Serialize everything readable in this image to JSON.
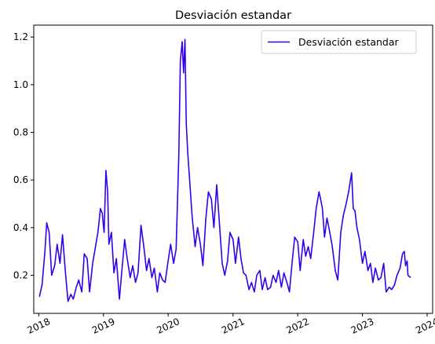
{
  "chart_data": {
    "type": "line",
    "title": "Desviación estandar",
    "xlabel": "",
    "ylabel": "",
    "x_ticks": [
      "2018",
      "2019",
      "2020",
      "2021",
      "2022",
      "2023",
      "2024"
    ],
    "y_ticks": [
      "0.2",
      "0.4",
      "0.6",
      "0.8",
      "1.0",
      "1.2"
    ],
    "xlim": [
      "2017-12-04",
      "2024-02-01"
    ],
    "ylim": [
      0.04,
      1.25
    ],
    "grid": false,
    "legend_position": "top-right",
    "series": [
      {
        "name": "Desviación estandar",
        "color": "#3300ee",
        "points": [
          [
            "2018-01-05",
            0.11
          ],
          [
            "2018-01-20",
            0.16
          ],
          [
            "2018-02-05",
            0.3
          ],
          [
            "2018-02-15",
            0.42
          ],
          [
            "2018-03-01",
            0.38
          ],
          [
            "2018-03-15",
            0.2
          ],
          [
            "2018-04-01",
            0.24
          ],
          [
            "2018-04-15",
            0.33
          ],
          [
            "2018-05-01",
            0.25
          ],
          [
            "2018-05-15",
            0.37
          ],
          [
            "2018-06-01",
            0.21
          ],
          [
            "2018-06-15",
            0.09
          ],
          [
            "2018-07-01",
            0.12
          ],
          [
            "2018-07-15",
            0.1
          ],
          [
            "2018-08-01",
            0.15
          ],
          [
            "2018-08-15",
            0.18
          ],
          [
            "2018-09-01",
            0.13
          ],
          [
            "2018-09-15",
            0.29
          ],
          [
            "2018-10-01",
            0.27
          ],
          [
            "2018-10-15",
            0.13
          ],
          [
            "2018-11-01",
            0.25
          ],
          [
            "2018-11-15",
            0.31
          ],
          [
            "2018-12-01",
            0.38
          ],
          [
            "2018-12-15",
            0.48
          ],
          [
            "2018-12-25",
            0.46
          ],
          [
            "2019-01-05",
            0.38
          ],
          [
            "2019-01-15",
            0.64
          ],
          [
            "2019-01-25",
            0.55
          ],
          [
            "2019-02-01",
            0.33
          ],
          [
            "2019-02-15",
            0.38
          ],
          [
            "2019-03-01",
            0.21
          ],
          [
            "2019-03-15",
            0.27
          ],
          [
            "2019-04-01",
            0.1
          ],
          [
            "2019-04-15",
            0.22
          ],
          [
            "2019-05-01",
            0.35
          ],
          [
            "2019-05-15",
            0.27
          ],
          [
            "2019-06-01",
            0.19
          ],
          [
            "2019-06-15",
            0.24
          ],
          [
            "2019-07-01",
            0.17
          ],
          [
            "2019-07-15",
            0.21
          ],
          [
            "2019-08-01",
            0.41
          ],
          [
            "2019-08-15",
            0.33
          ],
          [
            "2019-09-01",
            0.22
          ],
          [
            "2019-09-15",
            0.27
          ],
          [
            "2019-10-01",
            0.19
          ],
          [
            "2019-10-15",
            0.23
          ],
          [
            "2019-11-01",
            0.13
          ],
          [
            "2019-11-15",
            0.21
          ],
          [
            "2019-12-01",
            0.18
          ],
          [
            "2019-12-15",
            0.17
          ],
          [
            "2020-01-01",
            0.26
          ],
          [
            "2020-01-15",
            0.33
          ],
          [
            "2020-02-01",
            0.25
          ],
          [
            "2020-02-15",
            0.31
          ],
          [
            "2020-03-01",
            0.7
          ],
          [
            "2020-03-10",
            1.1
          ],
          [
            "2020-03-20",
            1.18
          ],
          [
            "2020-03-28",
            1.05
          ],
          [
            "2020-04-05",
            1.19
          ],
          [
            "2020-04-12",
            0.84
          ],
          [
            "2020-04-20",
            0.72
          ],
          [
            "2020-05-01",
            0.6
          ],
          [
            "2020-05-15",
            0.45
          ],
          [
            "2020-06-01",
            0.32
          ],
          [
            "2020-06-15",
            0.4
          ],
          [
            "2020-07-01",
            0.33
          ],
          [
            "2020-07-15",
            0.24
          ],
          [
            "2020-08-01",
            0.44
          ],
          [
            "2020-08-15",
            0.55
          ],
          [
            "2020-09-01",
            0.52
          ],
          [
            "2020-09-15",
            0.4
          ],
          [
            "2020-10-01",
            0.58
          ],
          [
            "2020-10-15",
            0.43
          ],
          [
            "2020-11-01",
            0.25
          ],
          [
            "2020-11-15",
            0.2
          ],
          [
            "2020-12-01",
            0.26
          ],
          [
            "2020-12-15",
            0.38
          ],
          [
            "2021-01-01",
            0.35
          ],
          [
            "2021-01-15",
            0.25
          ],
          [
            "2021-02-01",
            0.36
          ],
          [
            "2021-02-15",
            0.27
          ],
          [
            "2021-03-01",
            0.21
          ],
          [
            "2021-03-15",
            0.2
          ],
          [
            "2021-04-01",
            0.14
          ],
          [
            "2021-04-15",
            0.17
          ],
          [
            "2021-05-01",
            0.13
          ],
          [
            "2021-05-15",
            0.2
          ],
          [
            "2021-06-01",
            0.22
          ],
          [
            "2021-06-15",
            0.14
          ],
          [
            "2021-07-01",
            0.19
          ],
          [
            "2021-07-15",
            0.14
          ],
          [
            "2021-08-01",
            0.15
          ],
          [
            "2021-08-15",
            0.2
          ],
          [
            "2021-09-01",
            0.17
          ],
          [
            "2021-09-15",
            0.22
          ],
          [
            "2021-10-01",
            0.15
          ],
          [
            "2021-10-15",
            0.21
          ],
          [
            "2021-11-01",
            0.17
          ],
          [
            "2021-11-15",
            0.13
          ],
          [
            "2021-12-01",
            0.26
          ],
          [
            "2021-12-15",
            0.36
          ],
          [
            "2022-01-01",
            0.34
          ],
          [
            "2022-01-15",
            0.22
          ],
          [
            "2022-02-01",
            0.35
          ],
          [
            "2022-02-15",
            0.28
          ],
          [
            "2022-03-01",
            0.32
          ],
          [
            "2022-03-15",
            0.27
          ],
          [
            "2022-04-01",
            0.38
          ],
          [
            "2022-04-15",
            0.48
          ],
          [
            "2022-05-01",
            0.55
          ],
          [
            "2022-05-10",
            0.52
          ],
          [
            "2022-05-20",
            0.48
          ],
          [
            "2022-06-01",
            0.36
          ],
          [
            "2022-06-15",
            0.44
          ],
          [
            "2022-07-01",
            0.38
          ],
          [
            "2022-07-15",
            0.32
          ],
          [
            "2022-08-01",
            0.22
          ],
          [
            "2022-08-15",
            0.18
          ],
          [
            "2022-09-01",
            0.38
          ],
          [
            "2022-09-15",
            0.45
          ],
          [
            "2022-10-01",
            0.5
          ],
          [
            "2022-10-15",
            0.55
          ],
          [
            "2022-11-01",
            0.63
          ],
          [
            "2022-11-10",
            0.48
          ],
          [
            "2022-11-20",
            0.47
          ],
          [
            "2022-12-01",
            0.4
          ],
          [
            "2022-12-15",
            0.35
          ],
          [
            "2023-01-01",
            0.25
          ],
          [
            "2023-01-15",
            0.3
          ],
          [
            "2023-02-01",
            0.22
          ],
          [
            "2023-02-15",
            0.25
          ],
          [
            "2023-03-01",
            0.17
          ],
          [
            "2023-03-15",
            0.23
          ],
          [
            "2023-04-01",
            0.18
          ],
          [
            "2023-04-15",
            0.19
          ],
          [
            "2023-05-01",
            0.25
          ],
          [
            "2023-05-15",
            0.13
          ],
          [
            "2023-06-01",
            0.15
          ],
          [
            "2023-06-15",
            0.14
          ],
          [
            "2023-07-01",
            0.16
          ],
          [
            "2023-07-15",
            0.2
          ],
          [
            "2023-08-01",
            0.23
          ],
          [
            "2023-08-15",
            0.29
          ],
          [
            "2023-08-25",
            0.3
          ],
          [
            "2023-09-01",
            0.24
          ],
          [
            "2023-09-10",
            0.26
          ],
          [
            "2023-09-15",
            0.2
          ],
          [
            "2023-09-30",
            0.19
          ]
        ]
      }
    ]
  }
}
